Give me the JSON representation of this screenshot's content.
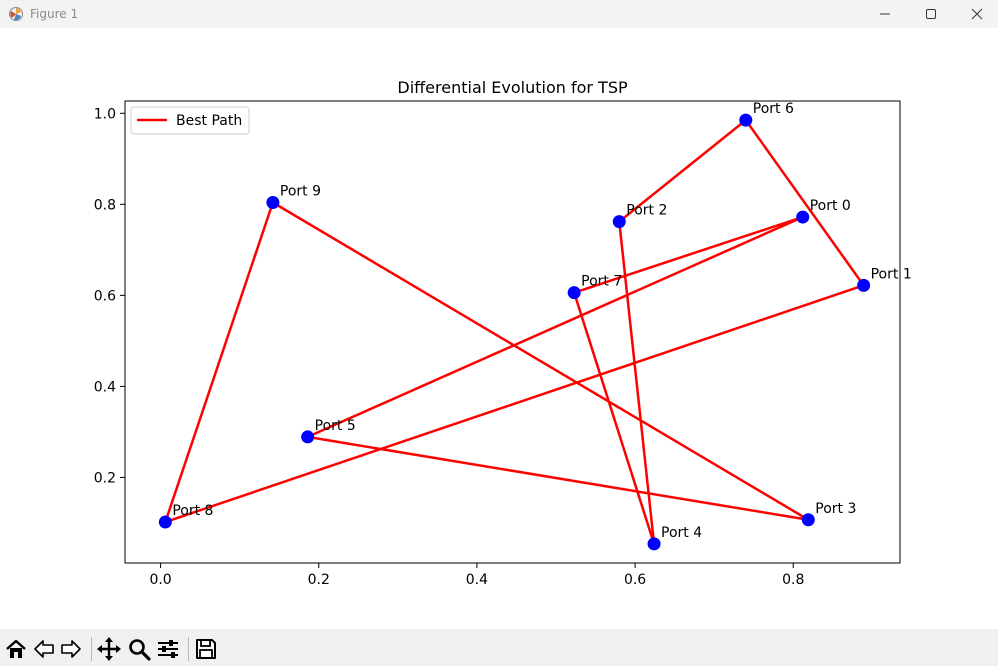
{
  "window": {
    "title": "Figure 1",
    "controls": {
      "minimize": "minimize",
      "maximize": "maximize",
      "close": "close"
    }
  },
  "toolbar": {
    "buttons": [
      {
        "name": "home",
        "icon": "home-icon"
      },
      {
        "name": "back",
        "icon": "arrow-left-icon"
      },
      {
        "name": "forward",
        "icon": "arrow-right-icon"
      },
      {
        "name": "pan",
        "icon": "move-icon"
      },
      {
        "name": "zoom",
        "icon": "magnifier-icon"
      },
      {
        "name": "configure-subplots",
        "icon": "sliders-icon"
      },
      {
        "name": "save",
        "icon": "floppy-disk-icon"
      }
    ]
  },
  "chart_data": {
    "type": "scatter",
    "title": "Differential Evolution for TSP",
    "xlabel": "",
    "ylabel": "",
    "xlim": [
      -0.045,
      0.935
    ],
    "ylim": [
      0.012,
      1.027
    ],
    "xticks": [
      "0.0",
      "0.2",
      "0.4",
      "0.6",
      "0.8"
    ],
    "yticks": [
      "0.2",
      "0.4",
      "0.6",
      "0.8",
      "1.0"
    ],
    "grid": false,
    "legend": {
      "location": "upper left",
      "entries": [
        "Best Path"
      ]
    },
    "path_color": "#ff0000",
    "point_color": "#0000ff",
    "points": [
      {
        "label": "Port 0",
        "x": 0.812,
        "y": 0.772
      },
      {
        "label": "Port 1",
        "x": 0.889,
        "y": 0.622
      },
      {
        "label": "Port 2",
        "x": 0.58,
        "y": 0.762
      },
      {
        "label": "Port 3",
        "x": 0.819,
        "y": 0.107
      },
      {
        "label": "Port 4",
        "x": 0.624,
        "y": 0.054
      },
      {
        "label": "Port 5",
        "x": 0.186,
        "y": 0.289
      },
      {
        "label": "Port 6",
        "x": 0.74,
        "y": 0.985
      },
      {
        "label": "Port 7",
        "x": 0.523,
        "y": 0.606
      },
      {
        "label": "Port 8",
        "x": 0.006,
        "y": 0.102
      },
      {
        "label": "Port 9",
        "x": 0.142,
        "y": 0.804
      }
    ],
    "series": [
      {
        "name": "Best Path",
        "order": [
          0,
          5,
          3,
          9,
          8,
          1,
          6,
          2,
          4,
          7,
          0
        ]
      }
    ]
  }
}
